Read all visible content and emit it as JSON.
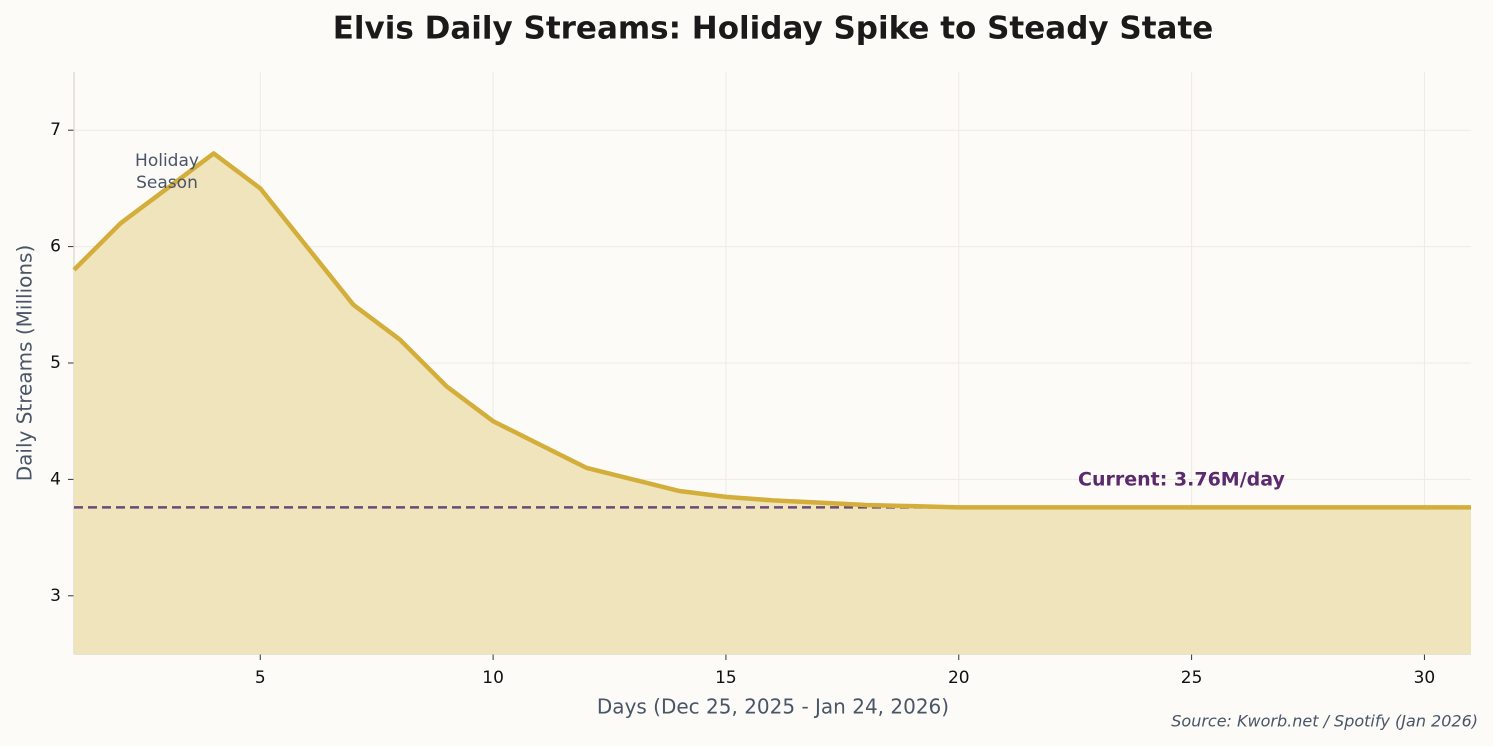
{
  "chart_data": {
    "type": "line",
    "title": "Elvis Daily Streams: Holiday Spike to Steady State",
    "x_label": "Days (Dec 25, 2025 - Jan 24, 2026)",
    "y_label": "Daily Streams (Millions)",
    "source": "Source: Kworb.net / Spotify (Jan 2026)",
    "x": [
      1,
      2,
      3,
      4,
      5,
      6,
      7,
      8,
      9,
      10,
      11,
      12,
      13,
      14,
      15,
      16,
      17,
      18,
      19,
      20,
      21,
      22,
      23,
      24,
      25,
      26,
      27,
      28,
      29,
      30,
      31
    ],
    "values": [
      5.8,
      6.2,
      6.5,
      6.8,
      6.5,
      6.0,
      5.5,
      5.2,
      4.8,
      4.5,
      4.3,
      4.1,
      4.0,
      3.9,
      3.85,
      3.82,
      3.8,
      3.78,
      3.77,
      3.76,
      3.76,
      3.76,
      3.76,
      3.76,
      3.76,
      3.76,
      3.76,
      3.76,
      3.76,
      3.76,
      3.76
    ],
    "color": "#d4ae3a",
    "fill_color": "#f0e4bc",
    "reference_line": 3.76,
    "reference_color": "#6b4a7a",
    "annotations": [
      {
        "text": "Holiday\nSeason",
        "color": "#4a5568"
      },
      {
        "text": "Current: 3.76M/day",
        "color": "#5b2a6e"
      }
    ],
    "xlim": [
      1,
      31
    ],
    "ylim": [
      2.5,
      7.5
    ],
    "xticks": [
      5,
      10,
      15,
      20,
      25,
      30
    ],
    "yticks": [
      3,
      4,
      5,
      6,
      7
    ],
    "grid": true
  }
}
